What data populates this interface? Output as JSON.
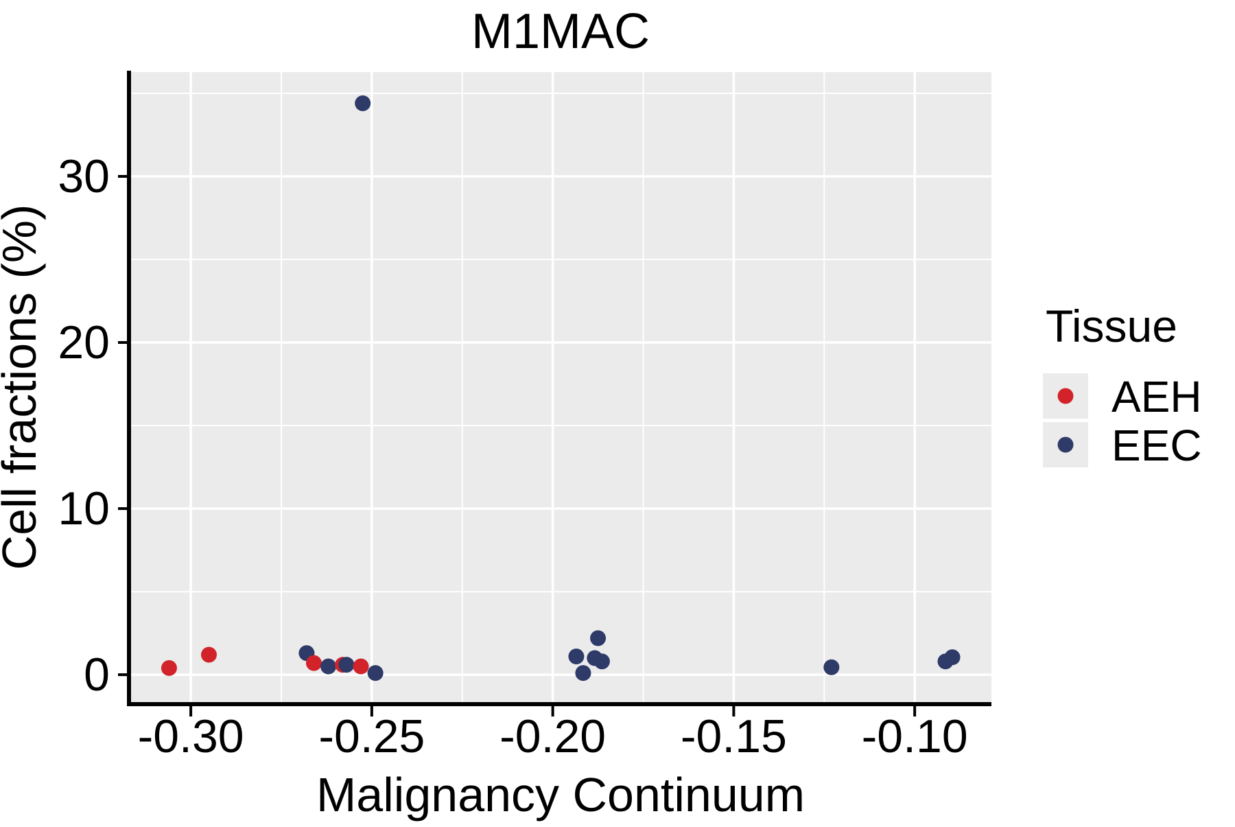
{
  "figure": {
    "title": "M1MAC",
    "x_axis": {
      "label": "Malignancy Continuum",
      "tick_labels": [
        "-0.30",
        "-0.25",
        "-0.20",
        "-0.15",
        "-0.10"
      ]
    },
    "y_axis": {
      "label": "Cell fractions (%)",
      "tick_labels": [
        "0",
        "10",
        "20",
        "30"
      ]
    },
    "legend": {
      "title": "Tissue",
      "entries": [
        {
          "label": "AEH",
          "color": "#D2232A"
        },
        {
          "label": "EEC",
          "color": "#2E3A67"
        }
      ]
    }
  },
  "chart_data": {
    "type": "scatter",
    "title": "M1MAC",
    "xlabel": "Malignancy Continuum",
    "ylabel": "Cell fractions (%)",
    "legend_title": "Tissue",
    "legend_position": "right",
    "grid": "major and minor, white on gray panel",
    "panel_background": "#EBEBEB",
    "gridline_color": "#FFFFFF",
    "x_ticks": [
      -0.3,
      -0.25,
      -0.2,
      -0.15,
      -0.1
    ],
    "y_ticks": [
      0,
      10,
      20,
      30
    ],
    "xlim": [
      -0.3167,
      -0.0788
    ],
    "ylim": [
      -1.69,
      36.28
    ],
    "point_colors": {
      "AEH": "#D2232A",
      "EEC": "#2E3A67"
    },
    "series": [
      {
        "name": "AEH",
        "color": "#D2232A"
      },
      {
        "name": "EEC",
        "color": "#2E3A67"
      }
    ],
    "points": [
      {
        "series": "AEH",
        "x": -0.306,
        "y": 0.4
      },
      {
        "series": "AEH",
        "x": -0.295,
        "y": 1.2
      },
      {
        "series": "EEC",
        "x": -0.2525,
        "y": 34.4
      },
      {
        "series": "EEC",
        "x": -0.268,
        "y": 1.3
      },
      {
        "series": "AEH",
        "x": -0.266,
        "y": 0.7
      },
      {
        "series": "EEC",
        "x": -0.262,
        "y": 0.5
      },
      {
        "series": "AEH",
        "x": -0.258,
        "y": 0.6
      },
      {
        "series": "EEC",
        "x": -0.257,
        "y": 0.6
      },
      {
        "series": "AEH",
        "x": -0.253,
        "y": 0.5
      },
      {
        "series": "EEC",
        "x": -0.249,
        "y": 0.1
      },
      {
        "series": "EEC",
        "x": -0.1935,
        "y": 1.1
      },
      {
        "series": "EEC",
        "x": -0.1916,
        "y": 0.1
      },
      {
        "series": "EEC",
        "x": -0.1884,
        "y": 1.0
      },
      {
        "series": "EEC",
        "x": -0.1875,
        "y": 2.2
      },
      {
        "series": "EEC",
        "x": -0.1864,
        "y": 0.8
      },
      {
        "series": "EEC",
        "x": -0.123,
        "y": 0.45
      },
      {
        "series": "EEC",
        "x": -0.0915,
        "y": 0.8
      },
      {
        "series": "EEC",
        "x": -0.0896,
        "y": 1.05
      }
    ]
  }
}
